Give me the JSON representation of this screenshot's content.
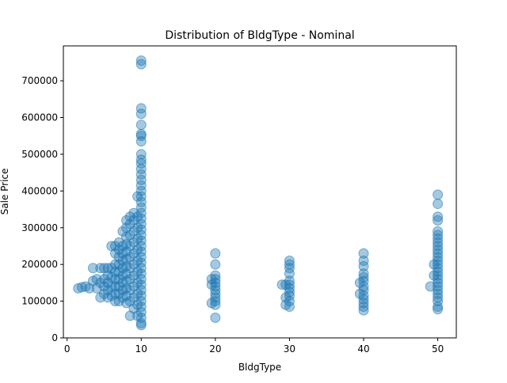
{
  "chart_data": {
    "type": "scatter",
    "title": "Distribution of BldgType - Nominal",
    "xlabel": "BldgType",
    "ylabel": "Sale Price",
    "xlim": [
      -0.5,
      52.5
    ],
    "ylim": [
      0,
      795000
    ],
    "xticks": [
      0,
      10,
      20,
      30,
      40,
      50
    ],
    "xtick_labels": [
      "0",
      "10",
      "20",
      "30",
      "40",
      "50"
    ],
    "yticks": [
      0,
      100000,
      200000,
      300000,
      400000,
      500000,
      600000,
      700000
    ],
    "ytick_labels": [
      "0",
      "100000",
      "200000",
      "300000",
      "400000",
      "500000",
      "600000",
      "700000"
    ],
    "marker_color": "#1f77b4",
    "marker_alpha": 0.4,
    "series": [
      {
        "name": "BldgType",
        "points": [
          [
            1.5,
            135000
          ],
          [
            2.0,
            138000
          ],
          [
            2.5,
            140000
          ],
          [
            3.0,
            135000
          ],
          [
            3.5,
            190000
          ],
          [
            3.5,
            155000
          ],
          [
            4.0,
            135000
          ],
          [
            4.0,
            160000
          ],
          [
            4.5,
            110000
          ],
          [
            4.5,
            150000
          ],
          [
            4.5,
            190000
          ],
          [
            5.0,
            120000
          ],
          [
            5.0,
            140000
          ],
          [
            5.0,
            160000
          ],
          [
            5.0,
            190000
          ],
          [
            5.5,
            110000
          ],
          [
            5.5,
            130000
          ],
          [
            5.5,
            150000
          ],
          [
            5.5,
            170000
          ],
          [
            5.5,
            190000
          ],
          [
            6.0,
            115000
          ],
          [
            6.0,
            140000
          ],
          [
            6.0,
            165000
          ],
          [
            6.0,
            190000
          ],
          [
            6.0,
            250000
          ],
          [
            6.5,
            100000
          ],
          [
            6.5,
            120000
          ],
          [
            6.5,
            140000
          ],
          [
            6.5,
            160000
          ],
          [
            6.5,
            180000
          ],
          [
            6.5,
            200000
          ],
          [
            6.5,
            230000
          ],
          [
            6.5,
            250000
          ],
          [
            7.0,
            100000
          ],
          [
            7.0,
            120000
          ],
          [
            7.0,
            140000
          ],
          [
            7.0,
            160000
          ],
          [
            7.0,
            180000
          ],
          [
            7.0,
            200000
          ],
          [
            7.0,
            220000
          ],
          [
            7.0,
            240000
          ],
          [
            7.0,
            260000
          ],
          [
            7.5,
            110000
          ],
          [
            7.5,
            130000
          ],
          [
            7.5,
            150000
          ],
          [
            7.5,
            170000
          ],
          [
            7.5,
            190000
          ],
          [
            7.5,
            210000
          ],
          [
            7.5,
            230000
          ],
          [
            7.5,
            250000
          ],
          [
            7.5,
            290000
          ],
          [
            8.0,
            95000
          ],
          [
            8.0,
            115000
          ],
          [
            8.0,
            135000
          ],
          [
            8.0,
            155000
          ],
          [
            8.0,
            175000
          ],
          [
            8.0,
            195000
          ],
          [
            8.0,
            215000
          ],
          [
            8.0,
            235000
          ],
          [
            8.0,
            255000
          ],
          [
            8.0,
            275000
          ],
          [
            8.0,
            300000
          ],
          [
            8.0,
            320000
          ],
          [
            8.5,
            60000
          ],
          [
            8.5,
            100000
          ],
          [
            8.5,
            130000
          ],
          [
            8.5,
            160000
          ],
          [
            8.5,
            190000
          ],
          [
            8.5,
            220000
          ],
          [
            8.5,
            250000
          ],
          [
            8.5,
            280000
          ],
          [
            8.5,
            310000
          ],
          [
            8.5,
            330000
          ],
          [
            9.0,
            80000
          ],
          [
            9.0,
            110000
          ],
          [
            9.0,
            140000
          ],
          [
            9.0,
            170000
          ],
          [
            9.0,
            200000
          ],
          [
            9.0,
            230000
          ],
          [
            9.0,
            260000
          ],
          [
            9.0,
            290000
          ],
          [
            9.0,
            320000
          ],
          [
            9.0,
            340000
          ],
          [
            9.5,
            60000
          ],
          [
            9.5,
            90000
          ],
          [
            9.5,
            120000
          ],
          [
            9.5,
            150000
          ],
          [
            9.5,
            180000
          ],
          [
            9.5,
            210000
          ],
          [
            9.5,
            240000
          ],
          [
            9.5,
            270000
          ],
          [
            9.5,
            300000
          ],
          [
            9.5,
            330000
          ],
          [
            9.5,
            385000
          ],
          [
            10.0,
            35000
          ],
          [
            10.0,
            40000
          ],
          [
            10.0,
            55000
          ],
          [
            10.0,
            70000
          ],
          [
            10.0,
            85000
          ],
          [
            10.0,
            100000
          ],
          [
            10.0,
            115000
          ],
          [
            10.0,
            130000
          ],
          [
            10.0,
            145000
          ],
          [
            10.0,
            160000
          ],
          [
            10.0,
            175000
          ],
          [
            10.0,
            190000
          ],
          [
            10.0,
            205000
          ],
          [
            10.0,
            220000
          ],
          [
            10.0,
            235000
          ],
          [
            10.0,
            250000
          ],
          [
            10.0,
            265000
          ],
          [
            10.0,
            280000
          ],
          [
            10.0,
            295000
          ],
          [
            10.0,
            310000
          ],
          [
            10.0,
            325000
          ],
          [
            10.0,
            340000
          ],
          [
            10.0,
            355000
          ],
          [
            10.0,
            370000
          ],
          [
            10.0,
            385000
          ],
          [
            10.0,
            400000
          ],
          [
            10.0,
            415000
          ],
          [
            10.0,
            430000
          ],
          [
            10.0,
            445000
          ],
          [
            10.0,
            460000
          ],
          [
            10.0,
            475000
          ],
          [
            10.0,
            485000
          ],
          [
            10.0,
            500000
          ],
          [
            10.0,
            535000
          ],
          [
            10.0,
            550000
          ],
          [
            10.0,
            555000
          ],
          [
            10.0,
            580000
          ],
          [
            10.0,
            610000
          ],
          [
            10.0,
            625000
          ],
          [
            10.0,
            745000
          ],
          [
            10.0,
            755000
          ],
          [
            19.5,
            95000
          ],
          [
            19.5,
            145000
          ],
          [
            19.5,
            160000
          ],
          [
            20.0,
            55000
          ],
          [
            20.0,
            90000
          ],
          [
            20.0,
            100000
          ],
          [
            20.0,
            110000
          ],
          [
            20.0,
            120000
          ],
          [
            20.0,
            130000
          ],
          [
            20.0,
            140000
          ],
          [
            20.0,
            150000
          ],
          [
            20.0,
            160000
          ],
          [
            20.0,
            170000
          ],
          [
            20.0,
            200000
          ],
          [
            20.0,
            230000
          ],
          [
            29.0,
            145000
          ],
          [
            29.5,
            90000
          ],
          [
            29.5,
            110000
          ],
          [
            29.5,
            145000
          ],
          [
            30.0,
            85000
          ],
          [
            30.0,
            100000
          ],
          [
            30.0,
            115000
          ],
          [
            30.0,
            125000
          ],
          [
            30.0,
            135000
          ],
          [
            30.0,
            145000
          ],
          [
            30.0,
            155000
          ],
          [
            30.0,
            175000
          ],
          [
            30.0,
            190000
          ],
          [
            30.0,
            200000
          ],
          [
            30.0,
            210000
          ],
          [
            39.5,
            120000
          ],
          [
            39.5,
            150000
          ],
          [
            40.0,
            75000
          ],
          [
            40.0,
            85000
          ],
          [
            40.0,
            95000
          ],
          [
            40.0,
            105000
          ],
          [
            40.0,
            115000
          ],
          [
            40.0,
            130000
          ],
          [
            40.0,
            140000
          ],
          [
            40.0,
            155000
          ],
          [
            40.0,
            165000
          ],
          [
            40.0,
            175000
          ],
          [
            40.0,
            195000
          ],
          [
            40.0,
            210000
          ],
          [
            40.0,
            230000
          ],
          [
            49.0,
            140000
          ],
          [
            49.5,
            170000
          ],
          [
            49.5,
            200000
          ],
          [
            50.0,
            78000
          ],
          [
            50.0,
            85000
          ],
          [
            50.0,
            100000
          ],
          [
            50.0,
            110000
          ],
          [
            50.0,
            120000
          ],
          [
            50.0,
            130000
          ],
          [
            50.0,
            140000
          ],
          [
            50.0,
            150000
          ],
          [
            50.0,
            160000
          ],
          [
            50.0,
            170000
          ],
          [
            50.0,
            180000
          ],
          [
            50.0,
            190000
          ],
          [
            50.0,
            200000
          ],
          [
            50.0,
            210000
          ],
          [
            50.0,
            220000
          ],
          [
            50.0,
            230000
          ],
          [
            50.0,
            240000
          ],
          [
            50.0,
            250000
          ],
          [
            50.0,
            260000
          ],
          [
            50.0,
            270000
          ],
          [
            50.0,
            280000
          ],
          [
            50.0,
            290000
          ],
          [
            50.0,
            320000
          ],
          [
            50.0,
            330000
          ],
          [
            50.0,
            365000
          ],
          [
            50.0,
            390000
          ]
        ]
      }
    ]
  }
}
